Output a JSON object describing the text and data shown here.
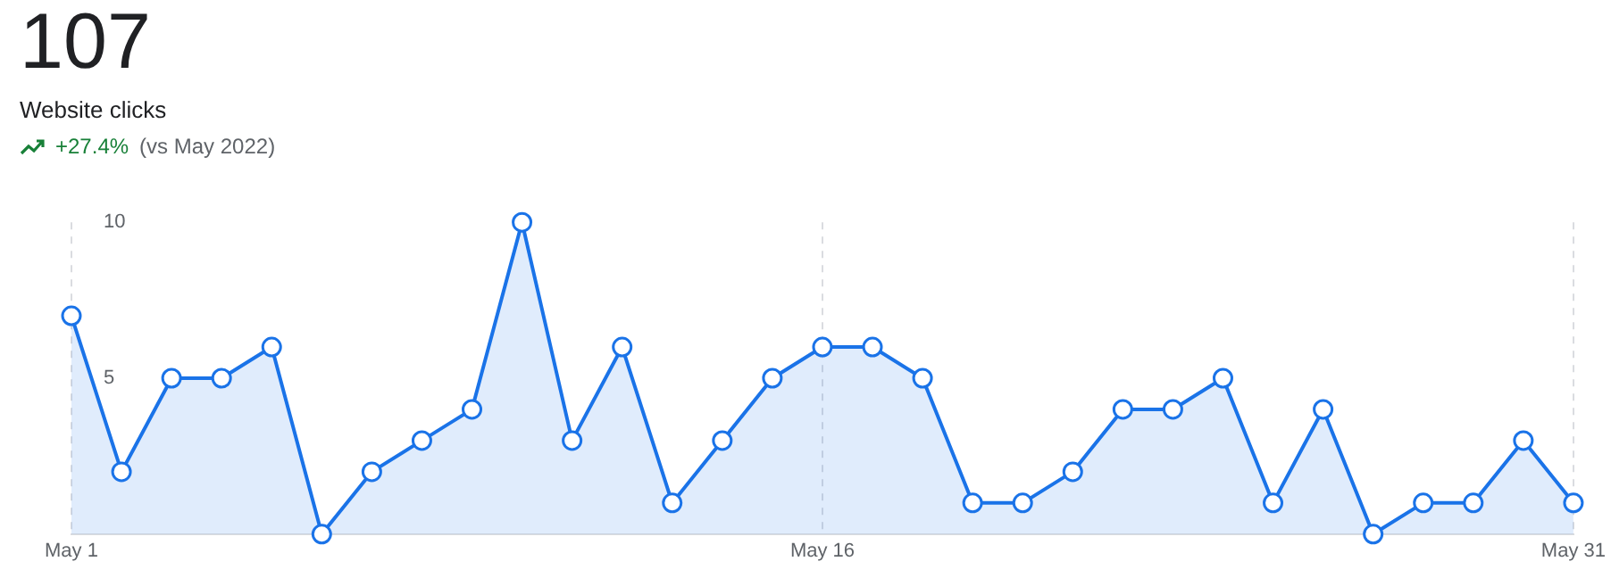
{
  "chart_data": {
    "type": "area",
    "title": "107",
    "subtitle": "Website clicks",
    "annotations": [
      "+27.4%",
      "(vs May 2022)"
    ],
    "categories": [
      "May 1",
      null,
      null,
      null,
      null,
      null,
      null,
      null,
      null,
      null,
      null,
      null,
      null,
      null,
      null,
      "May 16",
      null,
      null,
      null,
      null,
      null,
      null,
      null,
      null,
      null,
      null,
      null,
      null,
      null,
      null,
      "May 31"
    ],
    "series": [
      {
        "color": "#1a73e8",
        "values": [
          7,
          2,
          5,
          5,
          6,
          0,
          2,
          3,
          4,
          10,
          3,
          6,
          1,
          3,
          5,
          6,
          6,
          5,
          1,
          1,
          2,
          4,
          4,
          5,
          1,
          4,
          0,
          1,
          1,
          3,
          1
        ]
      }
    ],
    "ylim": [
      0,
      10
    ],
    "yticks": [
      5,
      10
    ],
    "grid": "x",
    "marker": "circle",
    "line_style": "solid"
  }
}
